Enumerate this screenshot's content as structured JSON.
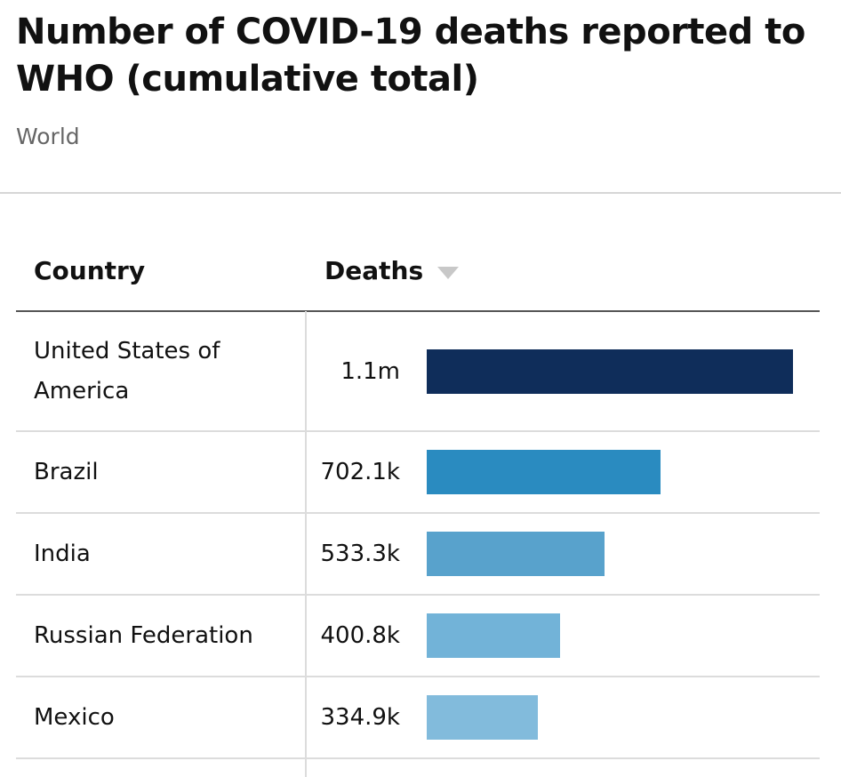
{
  "header": {
    "title": "Number of COVID-19 deaths reported to WHO (cumulative total)",
    "subtitle": "World"
  },
  "table": {
    "columns": {
      "country": "Country",
      "deaths": "Deaths"
    },
    "sort": {
      "column": "deaths",
      "direction": "descending",
      "icon": "sort-descending-icon"
    }
  },
  "chart_data": {
    "type": "bar",
    "orientation": "horizontal",
    "categories": [
      "United States of America",
      "Brazil",
      "India",
      "Russian Federation",
      "Mexico"
    ],
    "values": [
      1100000,
      702100,
      533300,
      400800,
      334900
    ],
    "value_labels": [
      "1.1m",
      "702.1k",
      "533.3k",
      "400.8k",
      "334.9k"
    ],
    "colors": [
      "#0f2d5a",
      "#2a8bc0",
      "#58a2cc",
      "#72b3d8",
      "#82bbdc"
    ],
    "xlim": [
      0,
      1100000
    ],
    "grid": false,
    "legend": "none"
  }
}
